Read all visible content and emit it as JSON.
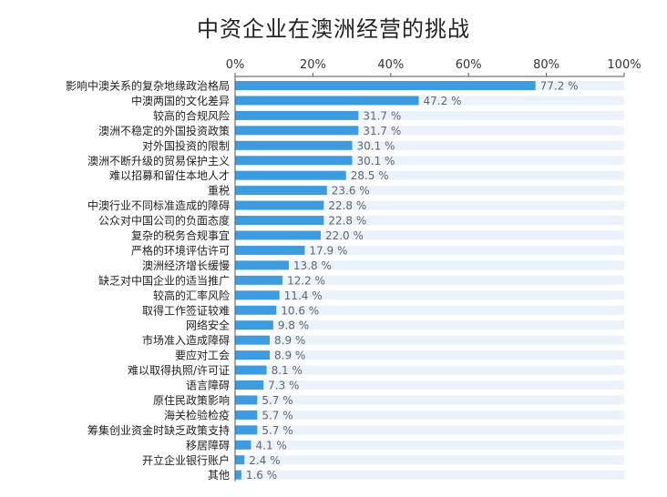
{
  "title": "中资企业在澳洲经营的挑战",
  "chart_data": {
    "type": "bar",
    "orientation": "horizontal",
    "title": "中资企业在澳洲经营的挑战",
    "xlabel": "",
    "ylabel": "",
    "xlim": [
      0,
      100
    ],
    "ticks": [
      "0%",
      "20%",
      "40%",
      "60%",
      "80%",
      "100%"
    ],
    "tick_values": [
      0,
      20,
      40,
      60,
      80,
      100
    ],
    "grid": false,
    "colors": {
      "bar": "#3d9be0",
      "track": "#eaf3fc"
    },
    "value_suffix": " %",
    "categories": [
      "影响中澳关系的复杂地缘政治格局",
      "中澳两国的文化差异",
      "较高的合规风险",
      "澳洲不稳定的外国投资政策",
      "对外国投资的限制",
      "澳洲不断升级的贸易保护主义",
      "难以招募和留住本地人才",
      "重税",
      "中澳行业不同标准造成的障碍",
      "公众对中国公司的负面态度",
      "复杂的税务合规事宜",
      "严格的环境评估许可",
      "澳洲经济增长缓慢",
      "缺乏对中国企业的适当推广",
      "较高的汇率风险",
      "取得工作签证较难",
      "网络安全",
      "市场准入造成障碍",
      "要应对工会",
      "难以取得执照/许可证",
      "语言障碍",
      "原住民政策影响",
      "海关检验检疫",
      "筹集创业资金时缺乏政策支持",
      "移居障碍",
      "开立企业银行账户",
      "其他"
    ],
    "values": [
      77.2,
      47.2,
      31.7,
      31.7,
      30.1,
      30.1,
      28.5,
      23.6,
      22.8,
      22.8,
      22.0,
      17.9,
      13.8,
      12.2,
      11.4,
      10.6,
      9.8,
      8.9,
      8.9,
      8.1,
      7.3,
      5.7,
      5.7,
      5.7,
      4.1,
      2.4,
      1.6
    ],
    "value_labels": [
      "77.2 %",
      "47.2 %",
      "31.7 %",
      "31.7 %",
      "30.1 %",
      "30.1 %",
      "28.5 %",
      "23.6 %",
      "22.8 %",
      "22.8 %",
      "22.0 %",
      "17.9 %",
      "13.8 %",
      "12.2 %",
      "11.4 %",
      "10.6 %",
      "9.8 %",
      "8.9 %",
      "8.9 %",
      "8.1 %",
      "7.3 %",
      "5.7 %",
      "5.7 %",
      "5.7 %",
      "4.1 %",
      "2.4 %",
      "1.6 %"
    ]
  }
}
